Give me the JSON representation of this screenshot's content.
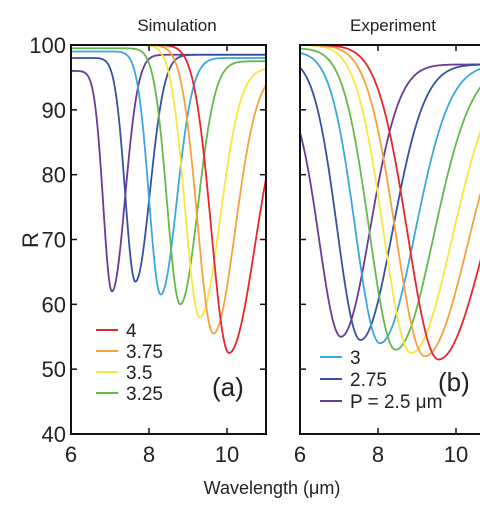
{
  "chart_data": {
    "type": "line",
    "xlabel": "Wavelength (μm)",
    "ylabel": "R",
    "ylim": [
      40,
      100
    ],
    "xlim": [
      6,
      11
    ],
    "y_ticks": [
      "40",
      "50",
      "60",
      "70",
      "80",
      "90",
      "100"
    ],
    "x_ticks": [
      "6",
      "8",
      "10"
    ],
    "colors": {
      "P4": "#e8262a",
      "P3.75": "#f7a23a",
      "P3.5": "#f6e83c",
      "P3.25": "#66b84a",
      "P3": "#3aa8dd",
      "P2.75": "#3651a1",
      "P2.5": "#6a3a98"
    },
    "panels": [
      {
        "title": "Simulation",
        "label": "(a)",
        "legend": [
          {
            "text": "4",
            "color": "#e8262a"
          },
          {
            "text": "3.75",
            "color": "#f7a23a"
          },
          {
            "text": "3.5",
            "color": "#f6e83c"
          },
          {
            "text": "3.25",
            "color": "#66b84a"
          }
        ],
        "series": [
          {
            "key": "P2.5",
            "dip_x": 7.05,
            "dip_y": 62,
            "base": 98.5,
            "left_start": 96,
            "left_w": 0.3,
            "right_w": 0.45
          },
          {
            "key": "P2.75",
            "dip_x": 7.65,
            "dip_y": 63.5,
            "base": 98.5,
            "left_start": 98,
            "left_w": 0.35,
            "right_w": 0.5
          },
          {
            "key": "P3",
            "dip_x": 8.3,
            "dip_y": 61.5,
            "base": 98,
            "left_start": 99,
            "left_w": 0.4,
            "right_w": 0.55
          },
          {
            "key": "P3.25",
            "dip_x": 8.8,
            "dip_y": 60,
            "base": 97.5,
            "left_start": 99.5,
            "left_w": 0.45,
            "right_w": 0.6
          },
          {
            "key": "P3.5",
            "dip_x": 9.3,
            "dip_y": 58,
            "base": 96.5,
            "left_start": 100,
            "left_w": 0.5,
            "right_w": 0.7
          },
          {
            "key": "P3.75",
            "dip_x": 9.65,
            "dip_y": 55.5,
            "base": 96,
            "left_start": 100,
            "left_w": 0.55,
            "right_w": 0.75
          },
          {
            "key": "P4",
            "dip_x": 10.05,
            "dip_y": 52.5,
            "base": 95,
            "left_start": 100,
            "left_w": 0.6,
            "right_w": 0.9
          }
        ]
      },
      {
        "title": "Experiment",
        "label": "(b)",
        "legend": [
          {
            "text": "3",
            "color": "#3aa8dd"
          },
          {
            "text": "2.75",
            "color": "#3651a1"
          },
          {
            "text": "P = 2.5 μm",
            "color": "#6a3a98"
          }
        ],
        "series": [
          {
            "key": "P2.5",
            "dip_x": 7.05,
            "dip_y": 55,
            "base": 97,
            "left_start": 93,
            "left_w": 0.75,
            "right_w": 1.0
          },
          {
            "key": "P2.75",
            "dip_x": 7.55,
            "dip_y": 54.5,
            "base": 97,
            "left_start": 98,
            "left_w": 0.8,
            "right_w": 1.1
          },
          {
            "key": "P3",
            "dip_x": 8.05,
            "dip_y": 54,
            "base": 97,
            "left_start": 99,
            "left_w": 0.85,
            "right_w": 1.2
          },
          {
            "key": "P3.25",
            "dip_x": 8.45,
            "dip_y": 53,
            "base": 97,
            "left_start": 99.5,
            "left_w": 0.9,
            "right_w": 1.3
          },
          {
            "key": "P3.5",
            "dip_x": 8.85,
            "dip_y": 52.5,
            "base": 97,
            "left_start": 100,
            "left_w": 0.95,
            "right_w": 1.4
          },
          {
            "key": "P3.75",
            "dip_x": 9.2,
            "dip_y": 52,
            "base": 97,
            "left_start": 100,
            "left_w": 1.0,
            "right_w": 1.5
          },
          {
            "key": "P4",
            "dip_x": 9.55,
            "dip_y": 51.5,
            "base": 97,
            "left_start": 100,
            "left_w": 1.05,
            "right_w": 1.6
          }
        ]
      }
    ]
  }
}
